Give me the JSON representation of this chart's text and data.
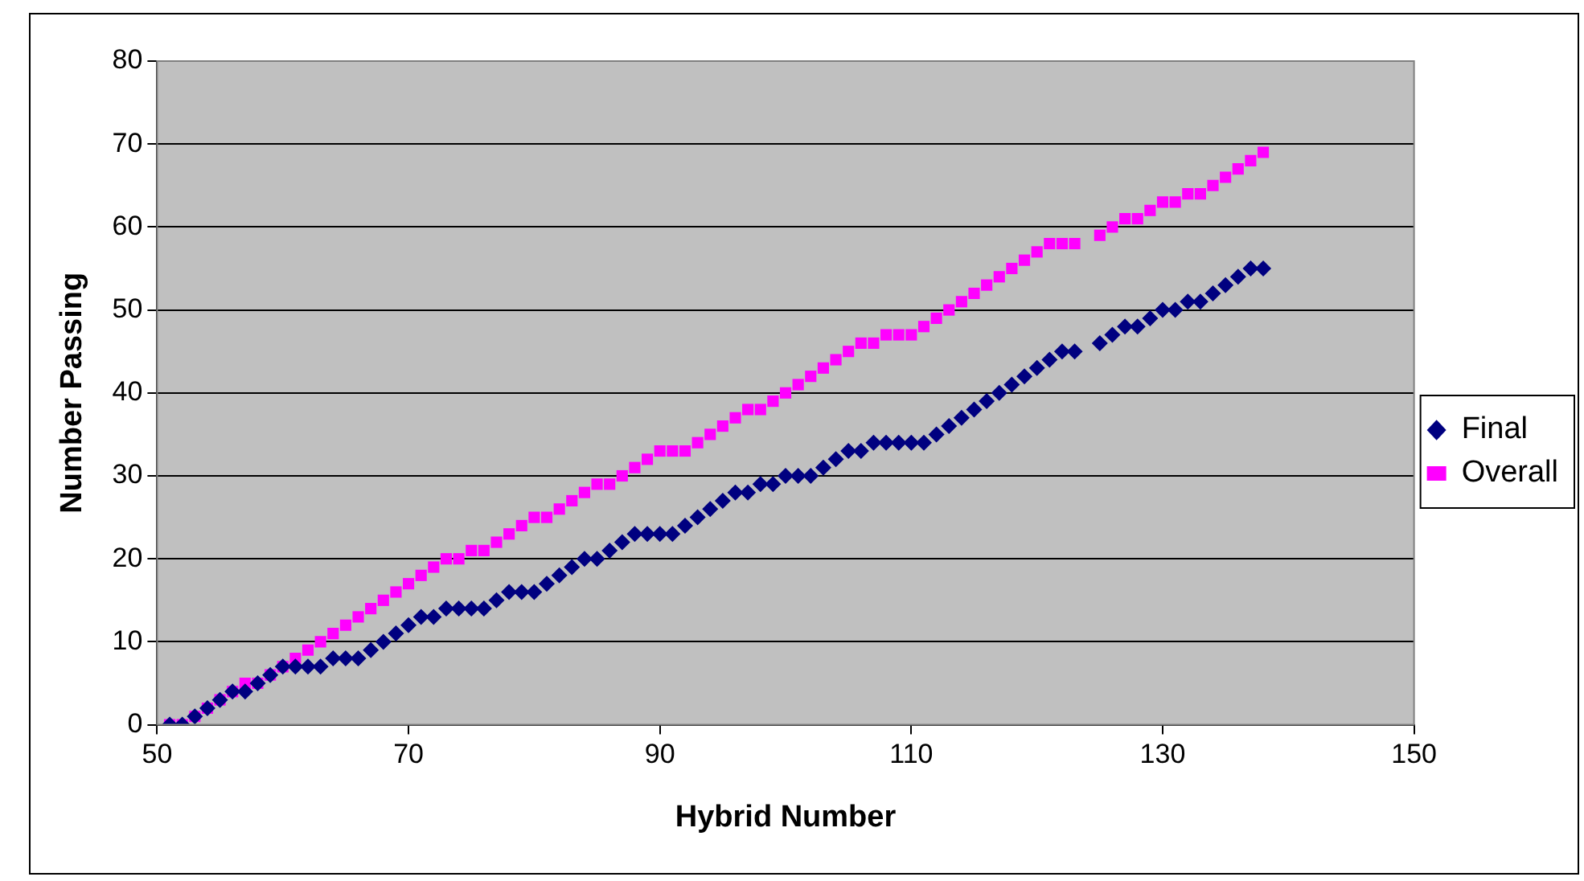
{
  "chart_data": {
    "type": "scatter",
    "xlabel": "Hybrid Number",
    "ylabel": "Number Passing",
    "x": [
      51,
      52,
      53,
      54,
      55,
      56,
      57,
      58,
      59,
      60,
      61,
      62,
      63,
      64,
      65,
      66,
      67,
      68,
      69,
      70,
      71,
      72,
      73,
      74,
      75,
      76,
      77,
      78,
      79,
      80,
      81,
      82,
      83,
      84,
      85,
      86,
      87,
      88,
      89,
      90,
      91,
      92,
      93,
      94,
      95,
      96,
      97,
      98,
      99,
      100,
      101,
      102,
      103,
      104,
      105,
      106,
      107,
      108,
      109,
      110,
      111,
      112,
      113,
      114,
      115,
      116,
      117,
      118,
      119,
      120,
      121,
      122,
      123,
      125,
      126,
      127,
      128,
      129,
      130,
      131,
      132,
      133,
      134,
      135,
      136,
      137,
      138
    ],
    "series": [
      {
        "name": "Final",
        "color": "#000080",
        "marker": "diamond",
        "values": [
          0,
          0,
          1,
          2,
          3,
          4,
          4,
          5,
          6,
          7,
          7,
          7,
          7,
          8,
          8,
          8,
          9,
          10,
          11,
          12,
          13,
          13,
          14,
          14,
          14,
          14,
          15,
          16,
          16,
          16,
          17,
          18,
          19,
          20,
          20,
          21,
          22,
          23,
          23,
          23,
          23,
          24,
          25,
          26,
          27,
          28,
          28,
          29,
          29,
          30,
          30,
          30,
          31,
          32,
          33,
          33,
          34,
          34,
          34,
          34,
          34,
          35,
          36,
          37,
          38,
          39,
          40,
          41,
          42,
          43,
          44,
          45,
          45,
          46,
          47,
          48,
          48,
          49,
          50,
          50,
          51,
          51,
          52,
          53,
          54,
          55,
          55
        ]
      },
      {
        "name": "Overall",
        "color": "#ff00ff",
        "marker": "square",
        "values": [
          0,
          0,
          1,
          2,
          3,
          4,
          5,
          5,
          6,
          7,
          8,
          9,
          10,
          11,
          12,
          13,
          14,
          15,
          16,
          17,
          18,
          19,
          20,
          20,
          21,
          21,
          22,
          23,
          24,
          25,
          25,
          26,
          27,
          28,
          29,
          29,
          30,
          31,
          32,
          33,
          33,
          33,
          34,
          35,
          36,
          37,
          38,
          38,
          39,
          40,
          41,
          42,
          43,
          44,
          45,
          46,
          46,
          47,
          47,
          47,
          48,
          49,
          50,
          51,
          52,
          53,
          54,
          55,
          56,
          57,
          58,
          58,
          58,
          59,
          60,
          61,
          61,
          62,
          63,
          63,
          64,
          64,
          65,
          66,
          67,
          68,
          69
        ]
      }
    ],
    "xlim": [
      50,
      150
    ],
    "xticks": [
      50,
      70,
      90,
      110,
      130,
      150
    ],
    "ylim": [
      0,
      80
    ],
    "yticks": [
      0,
      10,
      20,
      30,
      40,
      50,
      60,
      70,
      80
    ],
    "grid": "y",
    "legend": "right"
  }
}
